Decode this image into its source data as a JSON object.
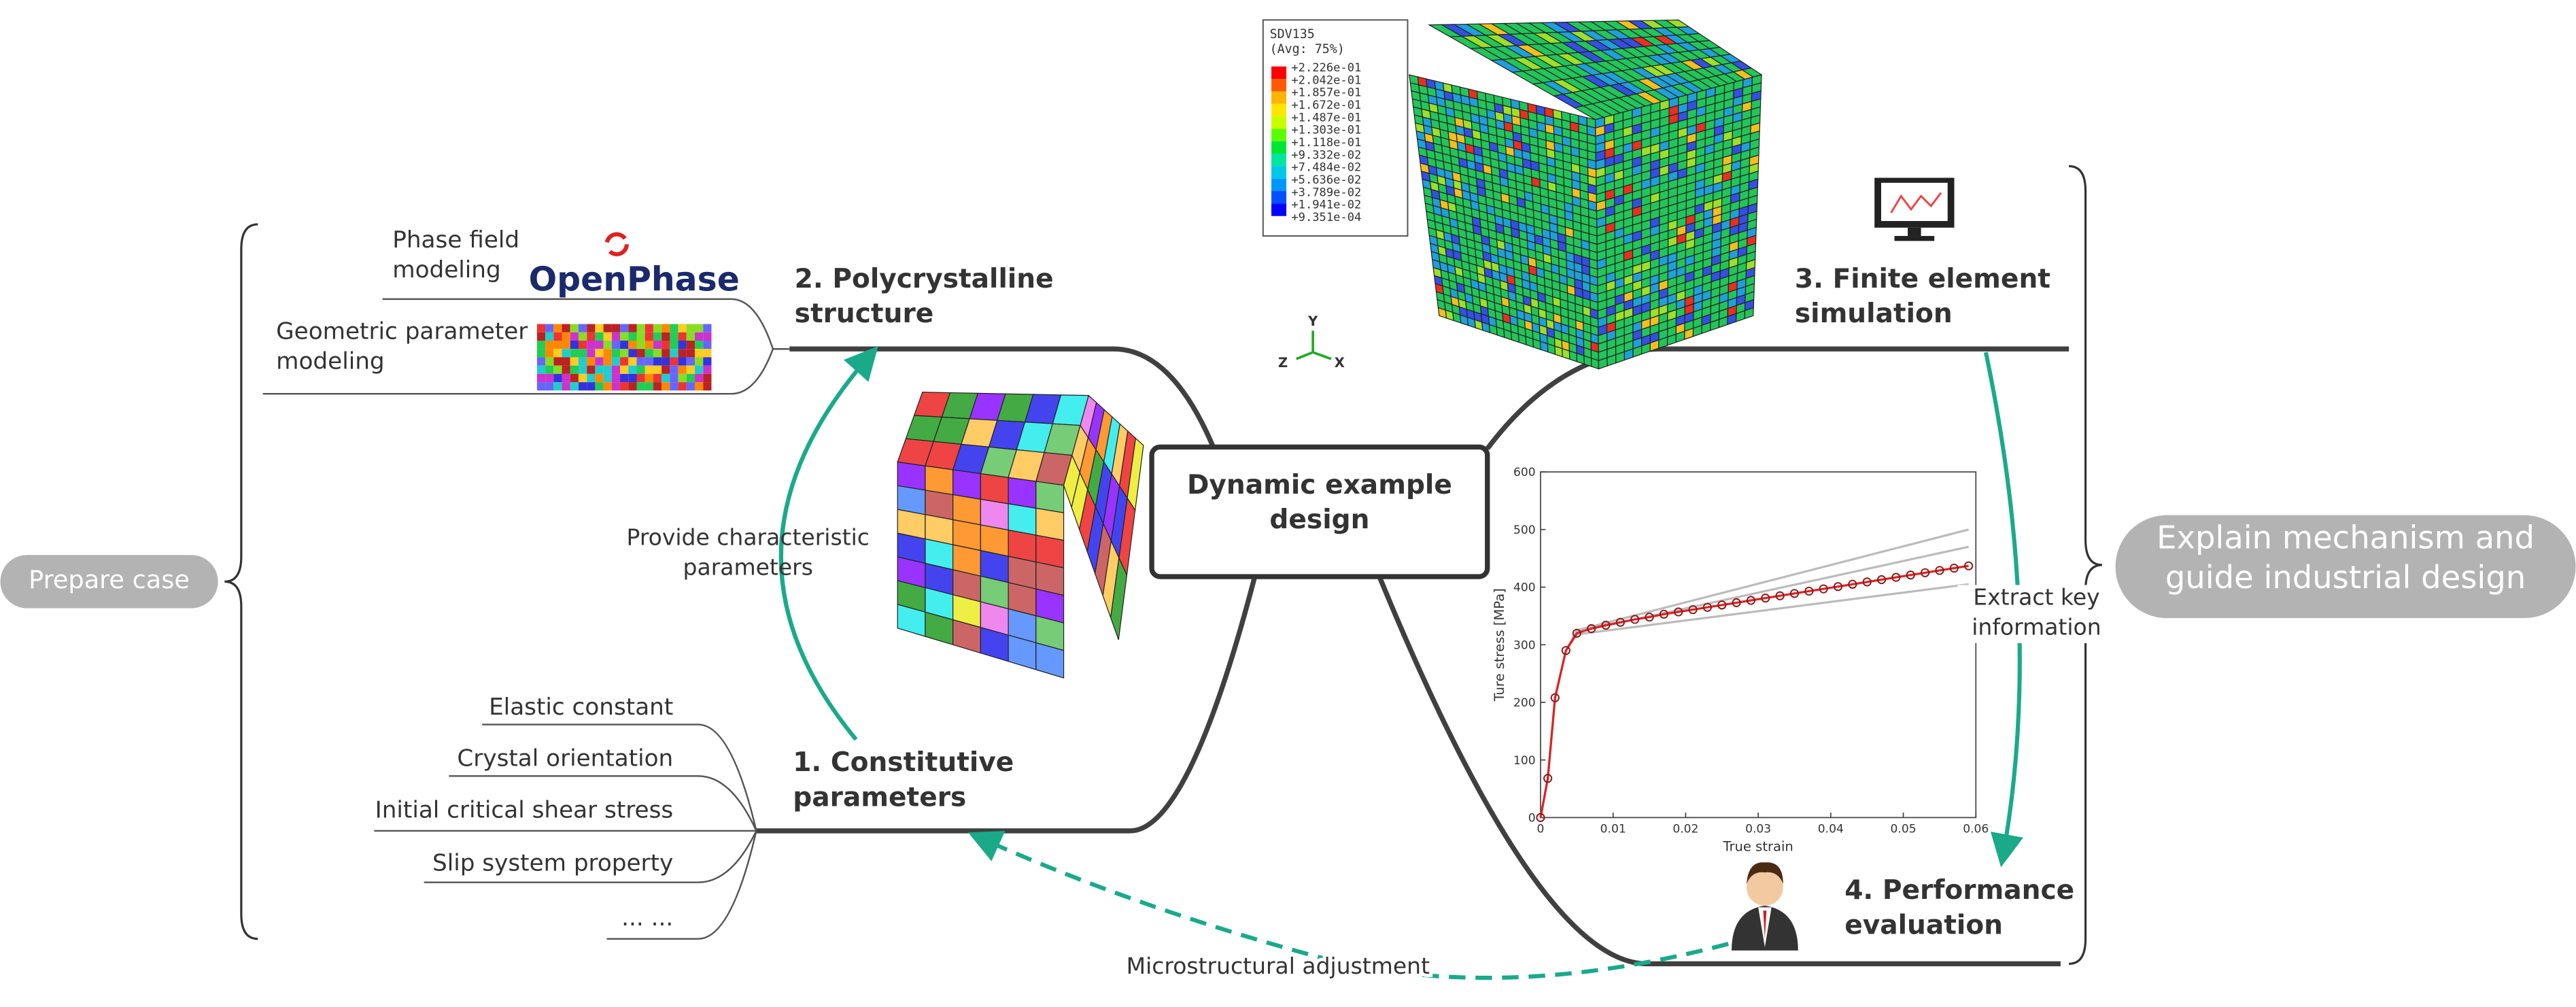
{
  "center": "Dynamic example design",
  "left_label": "Prepare case",
  "right_label": "Explain mechanism and guide industrial design",
  "nodes": [
    {
      "label": "1. Constitutive parameters"
    },
    {
      "label": "2. Polycrystalline structure"
    },
    {
      "label": "3. Finite element simulation"
    },
    {
      "label": "4. Performance evaluation"
    }
  ],
  "modeling": [
    "Phase field modeling",
    "Geometric parameter modeling"
  ],
  "logo": "OpenPhase",
  "parameters": [
    "Elastic constant",
    "Crystal orientation",
    "Initial critical shear stress",
    "Slip system property",
    "... ..."
  ],
  "edges": [
    "Provide characteristic parameters",
    "Extract key information",
    "Microstructural adjustment"
  ],
  "axis_triad": [
    "Y",
    "Z",
    "X"
  ],
  "contour_legend": {
    "title": "SDV135",
    "subtitle": "(Avg: 75%)",
    "labels": [
      "+2.226e-01",
      "+2.042e-01",
      "+1.857e-01",
      "+1.672e-01",
      "+1.487e-01",
      "+1.303e-01",
      "+1.118e-01",
      "+9.332e-02",
      "+7.484e-02",
      "+5.636e-02",
      "+3.789e-02",
      "+1.941e-02",
      "+9.351e-04"
    ],
    "colors": [
      "#ff0000",
      "#ff5a00",
      "#ffb400",
      "#ffe600",
      "#c8ff00",
      "#5aff00",
      "#00e632",
      "#00e6a0",
      "#00c8e6",
      "#0096ff",
      "#0050ff",
      "#0000ff"
    ]
  },
  "stress_chart": {
    "type": "line",
    "xlabel": "True strain",
    "ylabel": "Ture stress [MPa]",
    "xlim": [
      0,
      0.06
    ],
    "ylim": [
      0,
      600
    ],
    "xticks": [
      0,
      0.01,
      0.02,
      0.03,
      0.04,
      0.05,
      0.06
    ],
    "yticks": [
      0,
      100,
      200,
      300,
      400,
      500,
      600
    ],
    "series": [
      {
        "color": "#bbbbbb",
        "x": [
          0,
          0.001,
          0.002,
          0.0035,
          0.005,
          0.059
        ],
        "values": [
          0,
          68,
          208,
          290,
          325,
          500
        ]
      },
      {
        "color": "#bbbbbb",
        "x": [
          0,
          0.001,
          0.002,
          0.0035,
          0.005,
          0.059
        ],
        "values": [
          0,
          68,
          208,
          290,
          322,
          470
        ]
      },
      {
        "color": "#bbbbbb",
        "x": [
          0,
          0.001,
          0.002,
          0.0035,
          0.005,
          0.059
        ],
        "values": [
          0,
          68,
          208,
          290,
          318,
          405
        ]
      },
      {
        "color": "#dd2222",
        "markers": true,
        "x": [
          0,
          0.001,
          0.002,
          0.0035,
          0.005,
          0.007,
          0.009,
          0.011,
          0.013,
          0.015,
          0.017,
          0.019,
          0.021,
          0.023,
          0.025,
          0.027,
          0.029,
          0.031,
          0.033,
          0.035,
          0.037,
          0.039,
          0.041,
          0.043,
          0.045,
          0.047,
          0.049,
          0.051,
          0.053,
          0.055,
          0.057,
          0.059
        ],
        "values": [
          0,
          68,
          208,
          290,
          320,
          328,
          334,
          339,
          344,
          348,
          353,
          357,
          361,
          365,
          369,
          373,
          377,
          381,
          385,
          389,
          393,
          397,
          401,
          405,
          409,
          413,
          417,
          421,
          425,
          429,
          433,
          437
        ]
      }
    ]
  }
}
